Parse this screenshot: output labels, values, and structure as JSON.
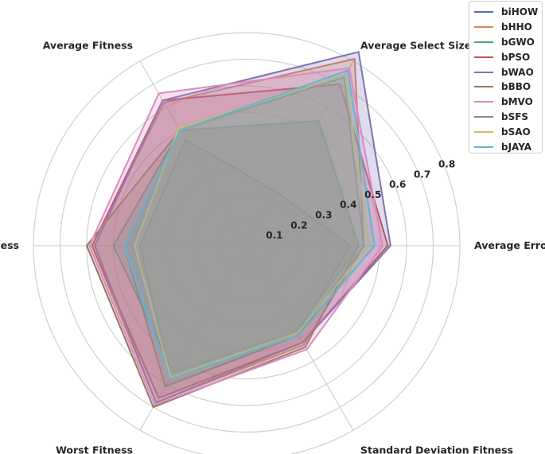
{
  "chart_data": {
    "type": "radar",
    "title": "",
    "axes": [
      "Average Error",
      "Average Select Size",
      "Average Fitness",
      "Best Fitness",
      "Worst Fitness",
      "Standard Deviation Fitness"
    ],
    "radial_ticks": [
      "0.1",
      "0.2",
      "0.3",
      "0.4",
      "0.5",
      "0.6",
      "0.7",
      "0.8"
    ],
    "rlim": [
      0,
      0.8
    ],
    "grid": true,
    "legend_position": "top-right",
    "series": [
      {
        "name": "biHOW",
        "color": "#4c72b0",
        "values": [
          0.39,
          0.23,
          0.46,
          0.4,
          0.57,
          0.38
        ]
      },
      {
        "name": "bHHO",
        "color": "#dd8452",
        "values": [
          0.44,
          0.81,
          0.62,
          0.58,
          0.68,
          0.43
        ]
      },
      {
        "name": "bGWO",
        "color": "#55a868",
        "values": [
          0.44,
          0.73,
          0.5,
          0.46,
          0.61,
          0.39
        ]
      },
      {
        "name": "bPSO",
        "color": "#c44e52",
        "values": [
          0.53,
          0.7,
          0.63,
          0.58,
          0.66,
          0.42
        ]
      },
      {
        "name": "bWAO",
        "color": "#8172b3",
        "values": [
          0.54,
          0.84,
          0.63,
          0.57,
          0.68,
          0.42
        ]
      },
      {
        "name": "bBBO",
        "color": "#937860",
        "values": [
          0.42,
          0.54,
          0.5,
          0.6,
          0.7,
          0.44
        ]
      },
      {
        "name": "bMVO",
        "color": "#da8bc3",
        "values": [
          0.51,
          0.77,
          0.66,
          0.59,
          0.69,
          0.45
        ]
      },
      {
        "name": "bSFS",
        "color": "#8c8c8c",
        "values": [
          0.42,
          0.54,
          0.5,
          0.5,
          0.55,
          0.37
        ]
      },
      {
        "name": "bSAO",
        "color": "#ccb974",
        "values": [
          0.46,
          0.74,
          0.51,
          0.42,
          0.57,
          0.38
        ]
      },
      {
        "name": "bJAYA",
        "color": "#64b5cd",
        "values": [
          0.48,
          0.76,
          0.5,
          0.46,
          0.58,
          0.39
        ]
      }
    ]
  }
}
